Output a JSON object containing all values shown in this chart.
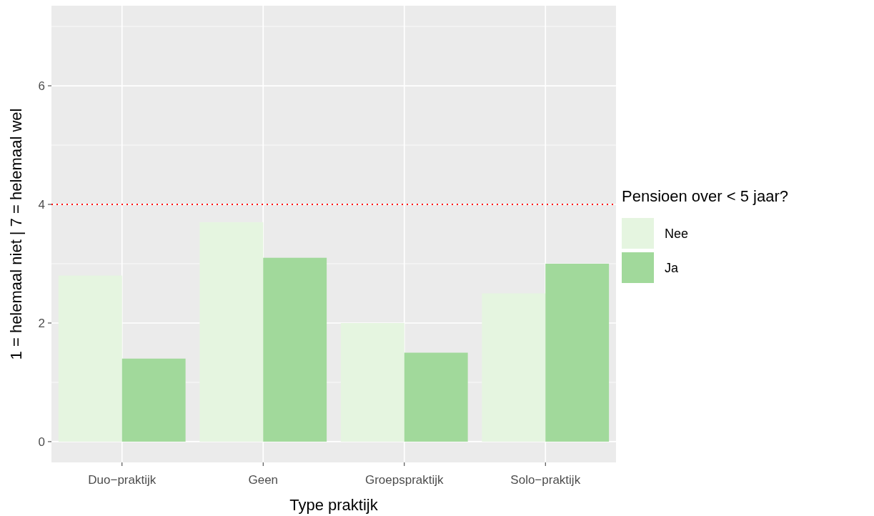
{
  "chart_data": {
    "type": "bar",
    "xlabel": "Type praktijk",
    "ylabel": "1 = helemaal niet | 7 = helemaal wel",
    "legend_title": "Pensioen over < 5 jaar?",
    "categories": [
      "Duo−praktijk",
      "Geen",
      "Groepspraktijk",
      "Solo−praktijk"
    ],
    "series": [
      {
        "name": "Nee",
        "color": "#e5f5e0",
        "values": [
          2.8,
          3.7,
          2.0,
          2.5
        ]
      },
      {
        "name": "Ja",
        "color": "#a1d99b",
        "values": [
          1.4,
          3.1,
          1.5,
          3.0
        ]
      }
    ],
    "ylim": [
      -0.35,
      7.35
    ],
    "yticks": [
      0,
      2,
      4,
      6
    ],
    "grid": true,
    "legend": "right",
    "ref_lines": [
      {
        "axis": "y",
        "value": 4,
        "color": "#ff0000",
        "line_style": "dotted"
      }
    ]
  }
}
